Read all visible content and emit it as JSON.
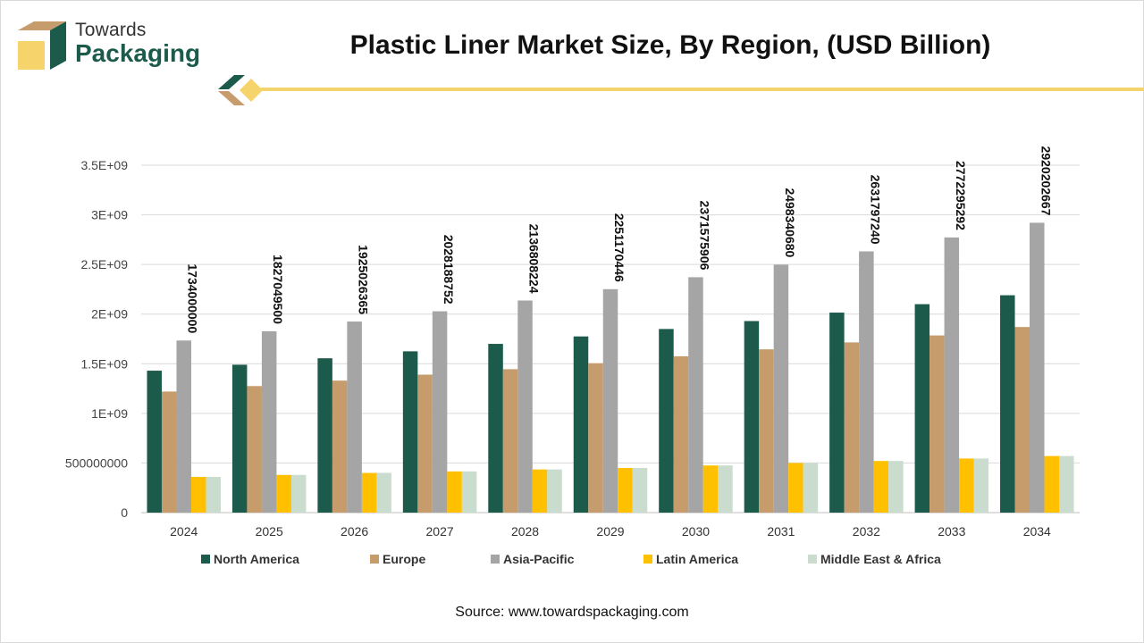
{
  "brand": {
    "line1": "Towards",
    "line2": "Packaging",
    "colors": {
      "dark": "#1c5a4b",
      "tan": "#c69c6d",
      "yellow": "#f3d36b"
    }
  },
  "source": "Source: www.towardspackaging.com",
  "chart_data": {
    "type": "bar",
    "title": "Plastic Liner Market Size, By Region, (USD Billion)",
    "xlabel": "",
    "ylabel": "",
    "categories": [
      "2024",
      "2025",
      "2026",
      "2027",
      "2028",
      "2029",
      "2030",
      "2031",
      "2032",
      "2033",
      "2034"
    ],
    "ylim": [
      0,
      3500000000
    ],
    "yticks": [
      {
        "value": 0,
        "label": "0"
      },
      {
        "value": 500000000,
        "label": "500000000"
      },
      {
        "value": 1000000000,
        "label": "1E+09"
      },
      {
        "value": 1500000000,
        "label": "1.5E+09"
      },
      {
        "value": 2000000000,
        "label": "2E+09"
      },
      {
        "value": 2500000000,
        "label": "2.5E+09"
      },
      {
        "value": 3000000000,
        "label": "3E+09"
      },
      {
        "value": 3500000000,
        "label": "3.5E+09"
      }
    ],
    "grid": true,
    "legend_position": "bottom",
    "series": [
      {
        "name": "North America",
        "color": "#1c5a4b",
        "values": [
          1430000000,
          1490000000,
          1555000000,
          1625000000,
          1700000000,
          1775000000,
          1850000000,
          1930000000,
          2015000000,
          2100000000,
          2190000000
        ]
      },
      {
        "name": "Europe",
        "color": "#c69c6d",
        "values": [
          1220000000,
          1275000000,
          1330000000,
          1390000000,
          1445000000,
          1505000000,
          1575000000,
          1645000000,
          1715000000,
          1785000000,
          1870000000
        ]
      },
      {
        "name": "Asia-Pacific",
        "color": "#a5a5a5",
        "values": [
          1734000000,
          1827049500,
          1925026365,
          2028188752,
          2136808224,
          2251170446,
          2371575906,
          2498340680,
          2631797240,
          2772295292,
          2920202667
        ],
        "data_labels": [
          "1734000000",
          "1827049500",
          "1925026365",
          "2028188752",
          "2136808224",
          "2251170446",
          "2371575906",
          "2498340680",
          "2631797240",
          "2772295292",
          "2920202667"
        ]
      },
      {
        "name": "Latin America",
        "color": "#ffc000",
        "values": [
          360000000,
          380000000,
          400000000,
          415000000,
          435000000,
          450000000,
          475000000,
          500000000,
          520000000,
          545000000,
          570000000
        ]
      },
      {
        "name": "Middle East & Africa",
        "color": "#c9dccd",
        "values": [
          360000000,
          380000000,
          400000000,
          415000000,
          435000000,
          450000000,
          475000000,
          500000000,
          520000000,
          545000000,
          570000000
        ]
      }
    ]
  }
}
